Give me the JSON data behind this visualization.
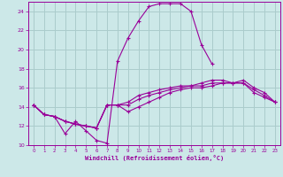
{
  "bg_color": "#cce8e8",
  "grid_color": "#aacccc",
  "line_color": "#990099",
  "xlabel": "Windchill (Refroidissement éolien,°C)",
  "xlim": [
    -0.5,
    23.5
  ],
  "ylim": [
    10,
    25
  ],
  "yticks": [
    10,
    12,
    14,
    16,
    18,
    20,
    22,
    24
  ],
  "xticks": [
    0,
    1,
    2,
    3,
    4,
    5,
    6,
    7,
    8,
    9,
    10,
    11,
    12,
    13,
    14,
    15,
    16,
    17,
    18,
    19,
    20,
    21,
    22,
    23
  ],
  "line1_x": [
    0,
    1,
    2,
    3,
    4,
    5,
    6,
    7,
    8,
    9,
    10,
    11,
    12,
    13,
    14,
    15,
    16,
    17
  ],
  "line1_y": [
    14.2,
    13.2,
    13.0,
    11.2,
    12.5,
    11.5,
    10.5,
    10.2,
    18.8,
    21.2,
    23.0,
    24.5,
    24.8,
    24.8,
    24.8,
    24.0,
    20.5,
    18.5
  ],
  "line2_x": [
    0,
    1,
    2,
    3,
    4,
    5,
    6,
    7,
    8,
    9,
    10,
    11,
    12,
    13,
    14,
    15,
    16,
    17,
    18,
    19,
    20,
    21,
    22,
    23
  ],
  "line2_y": [
    14.2,
    13.2,
    13.0,
    12.5,
    12.2,
    12.0,
    11.8,
    14.2,
    14.2,
    14.5,
    15.2,
    15.5,
    15.8,
    16.0,
    16.2,
    16.2,
    16.5,
    16.8,
    16.8,
    16.5,
    16.5,
    15.8,
    15.2,
    14.5
  ],
  "line3_x": [
    0,
    1,
    2,
    3,
    4,
    5,
    6,
    7,
    8,
    9,
    10,
    11,
    12,
    13,
    14,
    15,
    16,
    17,
    18,
    19,
    20,
    21,
    22,
    23
  ],
  "line3_y": [
    14.2,
    13.2,
    13.0,
    12.5,
    12.2,
    12.0,
    11.8,
    14.2,
    14.2,
    14.2,
    14.8,
    15.2,
    15.5,
    15.8,
    16.0,
    16.2,
    16.2,
    16.5,
    16.5,
    16.5,
    16.5,
    15.5,
    15.0,
    14.5
  ],
  "line4_x": [
    0,
    1,
    2,
    3,
    4,
    5,
    6,
    7,
    8,
    9,
    10,
    11,
    12,
    13,
    14,
    15,
    16,
    17,
    18,
    19,
    20,
    21,
    22,
    23
  ],
  "line4_y": [
    14.2,
    13.2,
    13.0,
    12.5,
    12.2,
    12.0,
    11.8,
    14.2,
    14.2,
    13.5,
    14.0,
    14.5,
    15.0,
    15.5,
    15.8,
    16.0,
    16.0,
    16.2,
    16.5,
    16.5,
    16.8,
    16.0,
    15.5,
    14.5
  ]
}
